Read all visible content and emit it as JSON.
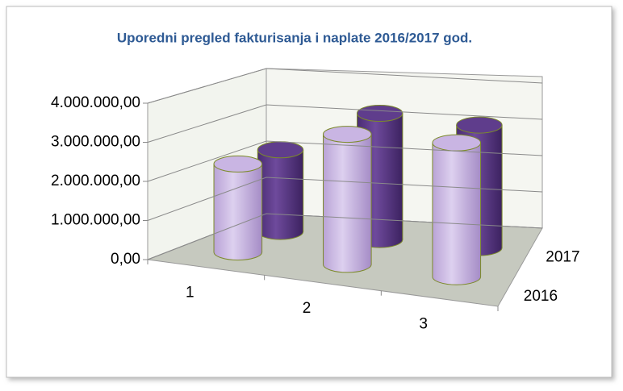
{
  "chart_data": {
    "type": "cylinder3d",
    "title": "Uporedni pregled fakturisanja i  naplate 2016/2017 god.",
    "categories": [
      "1",
      "2",
      "3"
    ],
    "series": [
      {
        "name": "2016",
        "color": "#c9b5e3",
        "values": [
          2300000,
          3400000,
          3500000
        ]
      },
      {
        "name": "2017",
        "color": "#5f3d8c",
        "values": [
          2200000,
          3400000,
          3300000
        ]
      }
    ],
    "ylim": [
      0,
      4000000
    ],
    "yticks": [
      {
        "value": 0,
        "label": "0,00"
      },
      {
        "value": 1000000,
        "label": "1.000.000,00"
      },
      {
        "value": 2000000,
        "label": "2.000.000,00"
      },
      {
        "value": 3000000,
        "label": "3.000.000,00"
      },
      {
        "value": 4000000,
        "label": "4.000.000,00"
      }
    ],
    "grid": true
  }
}
